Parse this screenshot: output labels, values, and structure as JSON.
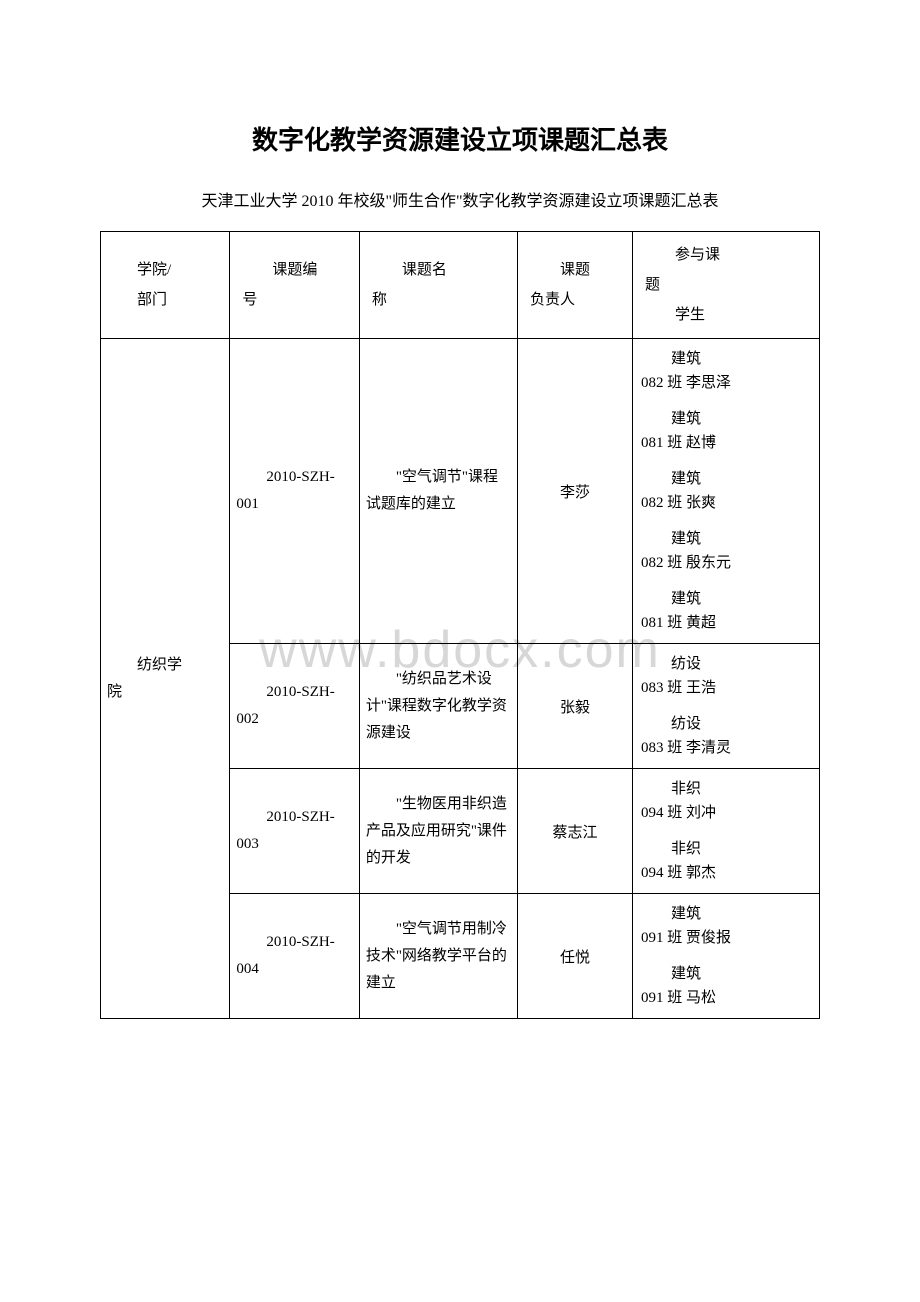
{
  "title": "数字化教学资源建设立项课题汇总表",
  "subtitle": "天津工业大学 2010 年校级\"师生合作\"数字化教学资源建设立项课题汇总表",
  "watermark": "www.bdocx.com",
  "headers": {
    "dept": "学院/部门",
    "code": "课题编号",
    "name": "课题名称",
    "leader": "课题负责人",
    "students": "参与课题\n学生"
  },
  "dept1": "纺织学院",
  "rows": [
    {
      "code": "2010-SZH-001",
      "name": "\"空气调节\"课程试题库的建立",
      "leader": "李莎",
      "students": [
        "建筑082 班 李思泽",
        "建筑081 班 赵博",
        "建筑082 班 张爽",
        "建筑082 班 殷东元",
        "建筑081 班 黄超"
      ]
    },
    {
      "code": "2010-SZH-002",
      "name": "\"纺织品艺术设计\"课程数字化教学资源建设",
      "leader": "张毅",
      "students": [
        "纺设083 班 王浩",
        "纺设083 班 李清灵"
      ]
    },
    {
      "code": "2010-SZH-003",
      "name": "\"生物医用非织造产品及应用研究\"课件的开发",
      "leader": "蔡志江",
      "students": [
        "非织094 班 刘冲",
        "非织094 班 郭杰"
      ]
    },
    {
      "code": "2010-SZH-004",
      "name": "\"空气调节用制冷技术\"网络教学平台的建立",
      "leader": "任悦",
      "students": [
        "建筑091 班 贾俊报",
        "建筑091 班 马松"
      ]
    }
  ]
}
